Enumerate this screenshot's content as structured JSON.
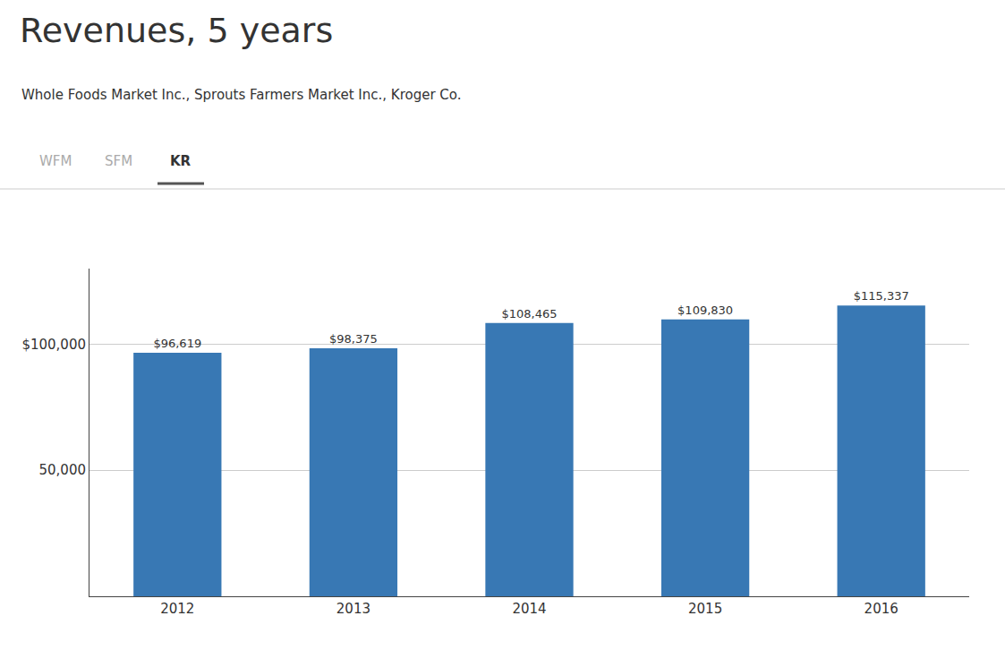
{
  "chart_data": {
    "type": "bar",
    "title": "Revenues, 5 years",
    "subtitle": "Whole Foods Market Inc., Sprouts Farmers Market Inc., Kroger Co.",
    "annotations": [
      "WFM",
      "SFM",
      "KR"
    ],
    "categories": [
      2012,
      2013,
      2014,
      2015,
      2016
    ],
    "values": [
      96619,
      98375,
      108465,
      109830,
      115337
    ],
    "value_labels": [
      "$96,619",
      "$98,375",
      "$108,465",
      "$109,830",
      "$115,337"
    ],
    "data_labels": true,
    "color": "#3878b4",
    "ylim": [
      0,
      130000
    ],
    "yticks": [
      {
        "value": 50000,
        "label": "50,000"
      },
      {
        "value": 100000,
        "label": "$100,000"
      }
    ],
    "grid": true
  }
}
